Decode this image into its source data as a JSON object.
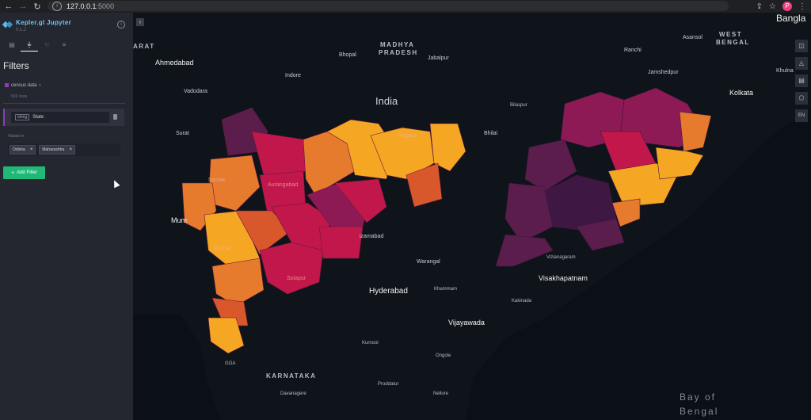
{
  "browser": {
    "url_host": "127.0.0.1",
    "url_port": ":5000",
    "avatar_letter": "P"
  },
  "sidebar": {
    "app_name": "Kepler.gl Jupyter",
    "version": "0.1.2",
    "panel_title": "Filters",
    "dataset": {
      "name": "census data",
      "rows": "569 rows"
    },
    "filter": {
      "field_type": "string",
      "field_name": "State",
      "values_label": "Values in",
      "chips": [
        "Odisha",
        "Maharashtra"
      ]
    },
    "add_filter_label": "Add Filter"
  },
  "map": {
    "controls": [
      "EN"
    ],
    "labels": {
      "arat": "ARAT",
      "madhya1": "MADHYA",
      "madhya2": "PRADESH",
      "westbengal1": "WEST",
      "westbengal2": "BENGAL",
      "bangla": "Bangla",
      "asansol": "Asansol",
      "ahmedabad": "Ahmedabad",
      "bhopal": "Bhopal",
      "jabalpur": "Jabalpur",
      "ranchi": "Ranchi",
      "jamshedpur": "Jamshedpur",
      "khulna": "Khulna",
      "indore": "Indore",
      "vadodara": "Vadodara",
      "india": "India",
      "kolkata": "Kolkata",
      "bilaspur": "Bilaspur",
      "surat": "Surat",
      "bhilai": "Bhilai",
      "nagpur": "Nagpur",
      "nashik": "Nashik",
      "aurangabad": "Aurangabad",
      "mumbai": "Mum",
      "pune": "Pune",
      "aizamabad": "izamabad",
      "warangal": "Warangal",
      "vizianagaram": "Vizianagaram",
      "visakhapatnam": "Visakhapatnam",
      "hyderabad": "Hyderabad",
      "khammam": "Khammam",
      "kakinada": "Kakinada",
      "vijayawada": "Vijayawada",
      "solapur": "Solapur",
      "kurnool": "Kurnool",
      "ongole": "Ongole",
      "goa": "GOA",
      "karnataka": "KARNATAKA",
      "proddatur": "Proddatur",
      "davanagere": "Davanagere",
      "nellore": "Nellore",
      "bay1": "Bay of",
      "bay2": "Bengal"
    },
    "colors": {
      "yellow": "#f5a623",
      "orange": "#e67a2d",
      "dark_orange": "#d9582b",
      "red": "#c2174a",
      "magenta": "#8d1a55",
      "purple": "#5a1d4c",
      "deep_purple": "#3e1742",
      "filter_accent": "#8e3bb8",
      "add_button": "#1fb877"
    }
  }
}
